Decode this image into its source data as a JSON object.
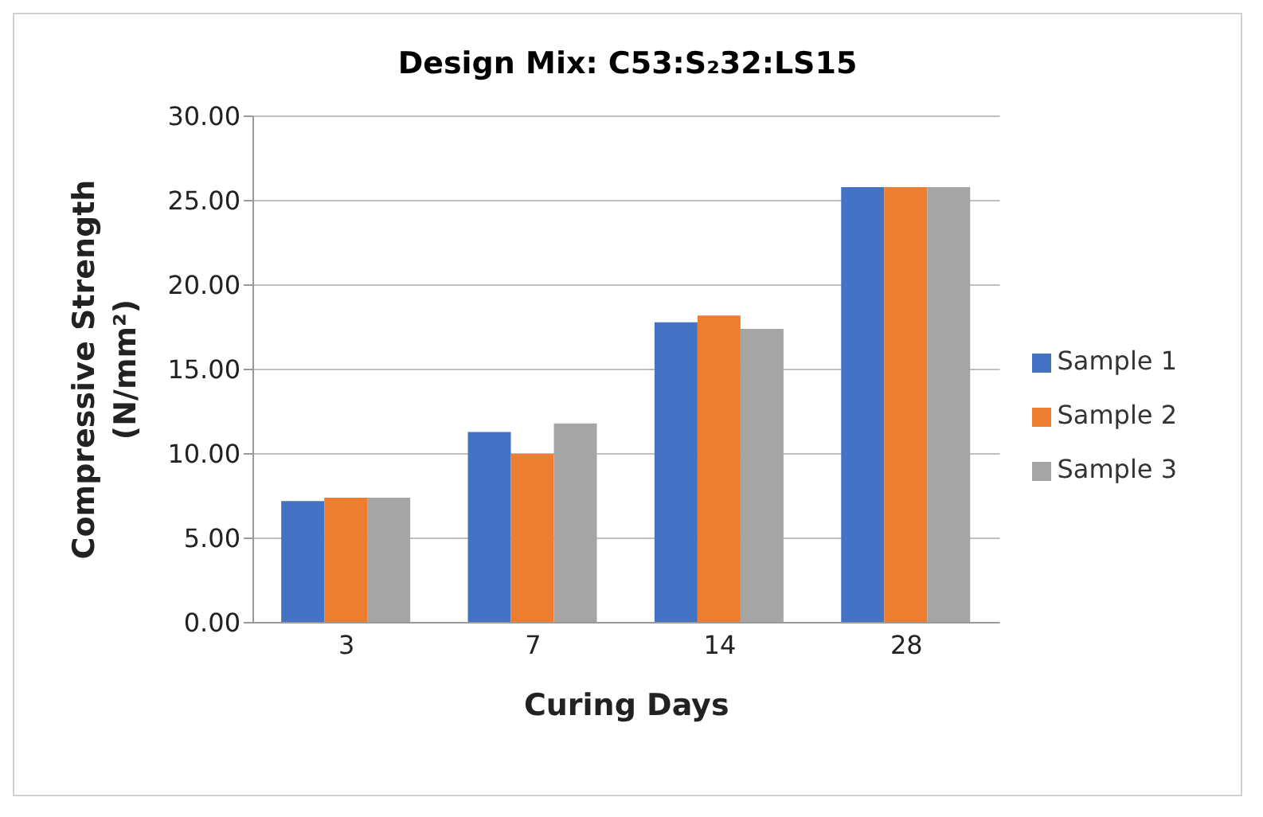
{
  "chart_data": {
    "type": "bar",
    "title": "Design Mix:  C53:S₂32:LS15",
    "xlabel": "Curing Days",
    "ylabel": "Compressive Strength (N/mm²)",
    "categories": [
      "3",
      "7",
      "14",
      "28"
    ],
    "series": [
      {
        "name": "Sample 1",
        "color": "#4472c4",
        "values": [
          7.2,
          11.3,
          17.8,
          25.8
        ]
      },
      {
        "name": "Sample 2",
        "color": "#ed7d31",
        "values": [
          7.4,
          10.0,
          18.2,
          25.8
        ]
      },
      {
        "name": "Sample 3",
        "color": "#a5a5a5",
        "values": [
          7.4,
          11.8,
          17.4,
          25.8
        ]
      }
    ],
    "ylim": [
      0,
      30
    ],
    "yticks": [
      {
        "value": 0,
        "label": "0.00"
      },
      {
        "value": 5,
        "label": "5.00"
      },
      {
        "value": 10,
        "label": "10.00"
      },
      {
        "value": 15,
        "label": "15.00"
      },
      {
        "value": 20,
        "label": "20.00"
      },
      {
        "value": 25,
        "label": "25.00"
      },
      {
        "value": 30,
        "label": "30.00"
      }
    ],
    "grid": "y",
    "legend": "right"
  }
}
